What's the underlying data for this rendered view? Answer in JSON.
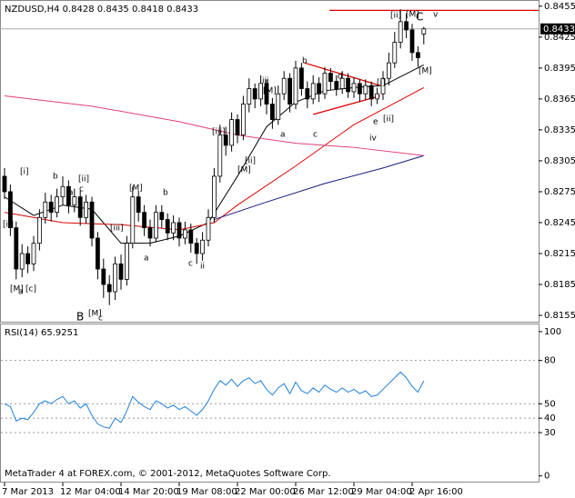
{
  "chart_data": [
    {
      "type": "candlestick",
      "title": "NZDUSD,H4  0.8428 0.8435 0.8418 0.8433",
      "categories": [
        "7 Mar 2013",
        null,
        null,
        null,
        null,
        null,
        null,
        null,
        null,
        null,
        "12 Mar 04:00",
        null,
        null,
        null,
        null,
        null,
        null,
        null,
        null,
        null,
        "14 Mar 20:00",
        null,
        null,
        null,
        null,
        null,
        null,
        null,
        null,
        null,
        "19 Mar 08:00",
        null,
        null,
        null,
        null,
        null,
        null,
        null,
        null,
        null,
        "22 Mar 00:00",
        null,
        null,
        null,
        null,
        null,
        null,
        null,
        null,
        null,
        "26 Mar 12:00",
        null,
        null,
        null,
        null,
        null,
        null,
        null,
        null,
        null,
        "29 Mar 04:00",
        null,
        null,
        null,
        null,
        null,
        null,
        null,
        null,
        null,
        "2 Apr 16:00",
        null,
        null
      ],
      "open": [
        0.829,
        0.8275,
        0.824,
        0.82,
        0.8215,
        0.8205,
        0.8225,
        0.825,
        0.8265,
        0.8255,
        0.827,
        0.828,
        0.8262,
        0.827,
        0.825,
        0.8265,
        0.823,
        0.82,
        0.8185,
        0.8178,
        0.8205,
        0.819,
        0.8225,
        0.827,
        0.8255,
        0.824,
        0.823,
        0.8255,
        0.8248,
        0.8235,
        0.8245,
        0.823,
        0.8238,
        0.8225,
        0.8215,
        0.8228,
        0.825,
        0.829,
        0.833,
        0.832,
        0.8345,
        0.833,
        0.836,
        0.8375,
        0.8365,
        0.838,
        0.836,
        0.8345,
        0.837,
        0.8385,
        0.836,
        0.8395,
        0.8375,
        0.8365,
        0.838,
        0.837,
        0.839,
        0.8382,
        0.8375,
        0.8385,
        0.8372,
        0.838,
        0.837,
        0.8378,
        0.8365,
        0.837,
        0.8385,
        0.84,
        0.842,
        0.844,
        0.8432,
        0.841,
        0.8428
      ],
      "high": [
        0.8298,
        0.8282,
        0.8246,
        0.8224,
        0.8222,
        0.8232,
        0.8258,
        0.8274,
        0.8272,
        0.8278,
        0.829,
        0.8286,
        0.8278,
        0.8276,
        0.8272,
        0.827,
        0.8236,
        0.821,
        0.8194,
        0.8212,
        0.8214,
        0.8232,
        0.828,
        0.8276,
        0.8262,
        0.8248,
        0.8262,
        0.8262,
        0.8254,
        0.8252,
        0.825,
        0.8246,
        0.8244,
        0.823,
        0.8236,
        0.8258,
        0.8298,
        0.834,
        0.8338,
        0.8352,
        0.835,
        0.8368,
        0.8385,
        0.838,
        0.8388,
        0.8384,
        0.8366,
        0.8378,
        0.8392,
        0.839,
        0.8402,
        0.84,
        0.8382,
        0.8388,
        0.8386,
        0.8396,
        0.8395,
        0.8388,
        0.8392,
        0.839,
        0.8386,
        0.8384,
        0.8384,
        0.8382,
        0.8376,
        0.8392,
        0.841,
        0.843,
        0.8452,
        0.8448,
        0.8438,
        0.8416,
        0.8435
      ],
      "low": [
        0.8268,
        0.8232,
        0.819,
        0.8192,
        0.8196,
        0.8198,
        0.8218,
        0.8244,
        0.8246,
        0.825,
        0.8262,
        0.8254,
        0.8255,
        0.8242,
        0.8244,
        0.8222,
        0.819,
        0.8172,
        0.8165,
        0.817,
        0.818,
        0.8184,
        0.822,
        0.8246,
        0.8232,
        0.8222,
        0.8226,
        0.824,
        0.8228,
        0.8228,
        0.8222,
        0.8224,
        0.8216,
        0.8205,
        0.8208,
        0.8222,
        0.8245,
        0.8284,
        0.831,
        0.8314,
        0.8322,
        0.8325,
        0.8352,
        0.8356,
        0.8358,
        0.835,
        0.8336,
        0.834,
        0.8364,
        0.8352,
        0.8355,
        0.8368,
        0.8356,
        0.836,
        0.8362,
        0.8365,
        0.8374,
        0.8368,
        0.837,
        0.8366,
        0.8366,
        0.8362,
        0.8364,
        0.8358,
        0.836,
        0.8364,
        0.8378,
        0.8395,
        0.8414,
        0.8424,
        0.8402,
        0.8396,
        0.8418
      ],
      "close": [
        0.8275,
        0.824,
        0.82,
        0.8215,
        0.8205,
        0.8225,
        0.825,
        0.8265,
        0.8255,
        0.827,
        0.828,
        0.8262,
        0.827,
        0.825,
        0.8265,
        0.823,
        0.82,
        0.8185,
        0.8178,
        0.8205,
        0.819,
        0.8225,
        0.827,
        0.8255,
        0.824,
        0.823,
        0.8255,
        0.8248,
        0.8235,
        0.8245,
        0.823,
        0.8238,
        0.8225,
        0.8215,
        0.8228,
        0.825,
        0.829,
        0.833,
        0.832,
        0.8345,
        0.833,
        0.836,
        0.8375,
        0.8365,
        0.838,
        0.836,
        0.8345,
        0.837,
        0.8385,
        0.836,
        0.8395,
        0.8375,
        0.8365,
        0.838,
        0.837,
        0.839,
        0.8382,
        0.8375,
        0.8385,
        0.8372,
        0.838,
        0.837,
        0.8378,
        0.8365,
        0.837,
        0.8385,
        0.84,
        0.842,
        0.844,
        0.8432,
        0.841,
        0.8405,
        0.8433
      ],
      "series": [
        {
          "color": "#000000",
          "x": [
            0,
            5,
            10,
            15,
            20,
            25,
            30,
            35,
            40,
            45,
            50,
            55,
            60,
            65,
            72
          ],
          "values": [
            0.827,
            0.8252,
            0.8262,
            0.8258,
            0.8225,
            0.8225,
            0.8232,
            0.8245,
            0.829,
            0.8338,
            0.8362,
            0.8373,
            0.8376,
            0.8378,
            0.8398
          ]
        },
        {
          "color": "#dd0000",
          "x": [
            0,
            10,
            20,
            30,
            36,
            40,
            50,
            60,
            72
          ],
          "values": [
            0.8255,
            0.8245,
            0.8243,
            0.8238,
            0.8245,
            0.8262,
            0.83,
            0.834,
            0.8376
          ]
        },
        {
          "color": "#1a1a80",
          "x": [
            36,
            45,
            55,
            65,
            72
          ],
          "values": [
            0.8248,
            0.8265,
            0.8283,
            0.8298,
            0.831
          ]
        },
        {
          "color": "#e0407a",
          "x": [
            0,
            15,
            30,
            40,
            50,
            60,
            72
          ],
          "values": [
            0.8368,
            0.8358,
            0.8343,
            0.833,
            0.8322,
            0.8318,
            0.831
          ]
        }
      ],
      "trendlines": [
        {
          "color": "#dd0000",
          "x": [
            51.5,
            64.5
          ],
          "values": [
            0.84,
            0.8378
          ]
        },
        {
          "color": "#dd0000",
          "x": [
            53,
            64.5
          ],
          "values": [
            0.835,
            0.8368
          ]
        },
        {
          "color": "#dd0000",
          "x": [
            55.8,
            92
          ],
          "values": [
            0.8451,
            0.8451
          ]
        }
      ],
      "price_label": 0.8433,
      "annotations": [
        "[M]",
        "a",
        "[c]",
        "B",
        "[M]",
        "c",
        "[ii]",
        "[i]",
        "b",
        "a",
        "c",
        "[ii]",
        "[iii]",
        "[M]",
        "b",
        "a",
        "c",
        "ii",
        "iii",
        "[M]",
        "b",
        "d",
        "c",
        "a",
        "e",
        "iv",
        "[ii]",
        "[M]",
        "C",
        "v",
        "[M]",
        "[ii]",
        "[iii]",
        "[M]",
        "[ii]",
        "[i]"
      ],
      "ylim": [
        0.8148,
        0.8461
      ],
      "yticks": [
        0.8455,
        0.8425,
        0.8395,
        0.8365,
        0.8335,
        0.8305,
        0.8275,
        0.8245,
        0.8215,
        0.8185,
        0.8155
      ]
    },
    {
      "type": "line",
      "title": "RSI(14) 65.9251",
      "footer": "MetaTrader 4 at FOREX.com, © 2001-2012, MetaQuotes Software Corp.",
      "color": "#1e7fe0",
      "values": [
        50,
        48,
        38,
        40,
        39,
        44,
        50,
        52,
        50,
        53,
        55,
        50,
        52,
        47,
        50,
        42,
        36,
        34,
        33,
        40,
        37,
        45,
        55,
        51,
        48,
        46,
        52,
        50,
        47,
        49,
        46,
        48,
        45,
        42,
        46,
        52,
        60,
        66,
        63,
        67,
        62,
        66,
        68,
        64,
        66,
        60,
        56,
        61,
        64,
        57,
        65,
        59,
        57,
        61,
        58,
        63,
        60,
        58,
        61,
        58,
        60,
        57,
        59,
        55,
        56,
        60,
        64,
        68,
        72,
        68,
        62,
        58,
        65.9251
      ],
      "ylim": [
        -4,
        105
      ],
      "yticks": [
        100,
        80,
        50,
        40,
        30,
        0
      ]
    }
  ]
}
